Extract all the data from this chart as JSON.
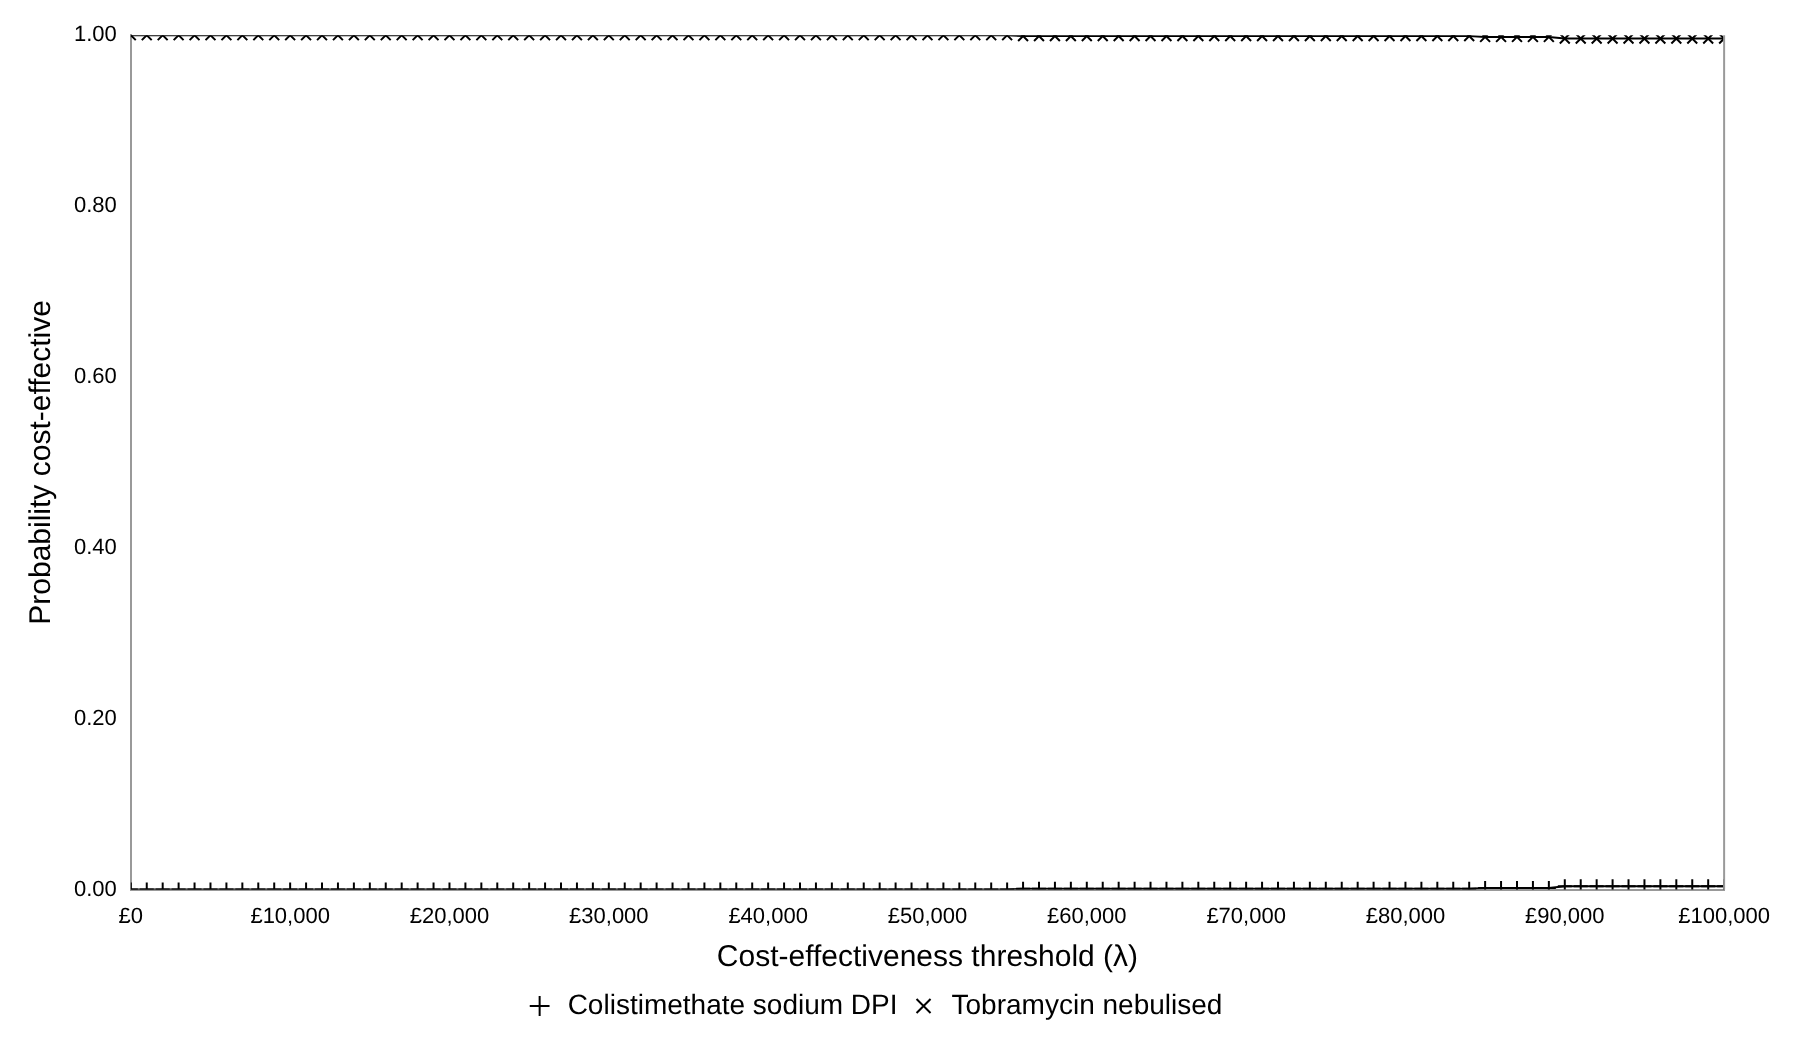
{
  "chart_data": {
    "type": "line",
    "xlabel": "Cost-effectiveness threshold (λ)",
    "ylabel": "Probability cost-effective",
    "x": [
      0,
      1000,
      2000,
      3000,
      4000,
      5000,
      6000,
      7000,
      8000,
      9000,
      10000,
      11000,
      12000,
      13000,
      14000,
      15000,
      16000,
      17000,
      18000,
      19000,
      20000,
      21000,
      22000,
      23000,
      24000,
      25000,
      26000,
      27000,
      28000,
      29000,
      30000,
      31000,
      32000,
      33000,
      34000,
      35000,
      36000,
      37000,
      38000,
      39000,
      40000,
      41000,
      42000,
      43000,
      44000,
      45000,
      46000,
      47000,
      48000,
      49000,
      50000,
      51000,
      52000,
      53000,
      54000,
      55000,
      56000,
      57000,
      58000,
      59000,
      60000,
      61000,
      62000,
      63000,
      64000,
      65000,
      66000,
      67000,
      68000,
      69000,
      70000,
      71000,
      72000,
      73000,
      74000,
      75000,
      76000,
      77000,
      78000,
      79000,
      80000,
      81000,
      82000,
      83000,
      84000,
      85000,
      86000,
      87000,
      88000,
      89000,
      90000,
      91000,
      92000,
      93000,
      94000,
      95000,
      96000,
      97000,
      98000,
      99000,
      100000
    ],
    "series": [
      {
        "name": "Colistimethate sodium DPI",
        "color": "#000000",
        "marker": "plus",
        "values": [
          0,
          0,
          0,
          0,
          0,
          0,
          0,
          0,
          0,
          0,
          0,
          0,
          0,
          0,
          0,
          0,
          0,
          0,
          0,
          0,
          0,
          0,
          0,
          0,
          0,
          0,
          0,
          0,
          0,
          0,
          0,
          0,
          0,
          0,
          0,
          0,
          0,
          0,
          0,
          0,
          0,
          0,
          0,
          0,
          0,
          0,
          0,
          0,
          0,
          0,
          0,
          0,
          0,
          0,
          0,
          0,
          0.001,
          0.001,
          0.001,
          0.001,
          0.001,
          0.001,
          0.001,
          0.001,
          0.001,
          0.001,
          0.001,
          0.001,
          0.001,
          0.001,
          0.001,
          0.001,
          0.001,
          0.001,
          0.001,
          0.001,
          0.001,
          0.001,
          0.001,
          0.001,
          0.001,
          0.001,
          0.001,
          0.001,
          0.001,
          0.002,
          0.002,
          0.002,
          0.002,
          0.002,
          0.004,
          0.004,
          0.004,
          0.004,
          0.004,
          0.004,
          0.004,
          0.004,
          0.004,
          0.004,
          0.004
        ]
      },
      {
        "name": "Tobramycin nebulised",
        "color": "#000000",
        "marker": "cross",
        "values": [
          1,
          1,
          1,
          1,
          1,
          1,
          1,
          1,
          1,
          1,
          1,
          1,
          1,
          1,
          1,
          1,
          1,
          1,
          1,
          1,
          1,
          1,
          1,
          1,
          1,
          1,
          1,
          1,
          1,
          1,
          1,
          1,
          1,
          1,
          1,
          1,
          1,
          1,
          1,
          1,
          1,
          1,
          1,
          1,
          1,
          1,
          1,
          1,
          1,
          1,
          1,
          1,
          1,
          1,
          1,
          1,
          0.999,
          0.999,
          0.999,
          0.999,
          0.999,
          0.999,
          0.999,
          0.999,
          0.999,
          0.999,
          0.999,
          0.999,
          0.999,
          0.999,
          0.999,
          0.999,
          0.999,
          0.999,
          0.999,
          0.999,
          0.999,
          0.999,
          0.999,
          0.999,
          0.999,
          0.999,
          0.999,
          0.999,
          0.999,
          0.998,
          0.998,
          0.998,
          0.998,
          0.998,
          0.996,
          0.996,
          0.996,
          0.996,
          0.996,
          0.996,
          0.996,
          0.996,
          0.996,
          0.996,
          0.996
        ]
      }
    ],
    "xlim": [
      0,
      100000
    ],
    "xticks": [
      {
        "value": 0,
        "label": "£0"
      },
      {
        "value": 10000,
        "label": "£10,000"
      },
      {
        "value": 20000,
        "label": "£20,000"
      },
      {
        "value": 30000,
        "label": "£30,000"
      },
      {
        "value": 40000,
        "label": "£40,000"
      },
      {
        "value": 50000,
        "label": "£50,000"
      },
      {
        "value": 60000,
        "label": "£60,000"
      },
      {
        "value": 70000,
        "label": "£70,000"
      },
      {
        "value": 80000,
        "label": "£80,000"
      },
      {
        "value": 90000,
        "label": "£90,000"
      },
      {
        "value": 100000,
        "label": "£100,000"
      }
    ],
    "ylim": [
      0,
      1
    ],
    "yticks": [
      {
        "value": 0,
        "label": "0.00"
      },
      {
        "value": 0.2,
        "label": "0.20"
      },
      {
        "value": 0.4,
        "label": "0.40"
      },
      {
        "value": 0.6,
        "label": "0.60"
      },
      {
        "value": 0.8,
        "label": "0.80"
      },
      {
        "value": 1,
        "label": "1.00"
      }
    ],
    "grid": false,
    "legend": "bottom",
    "line_style": "solid"
  }
}
